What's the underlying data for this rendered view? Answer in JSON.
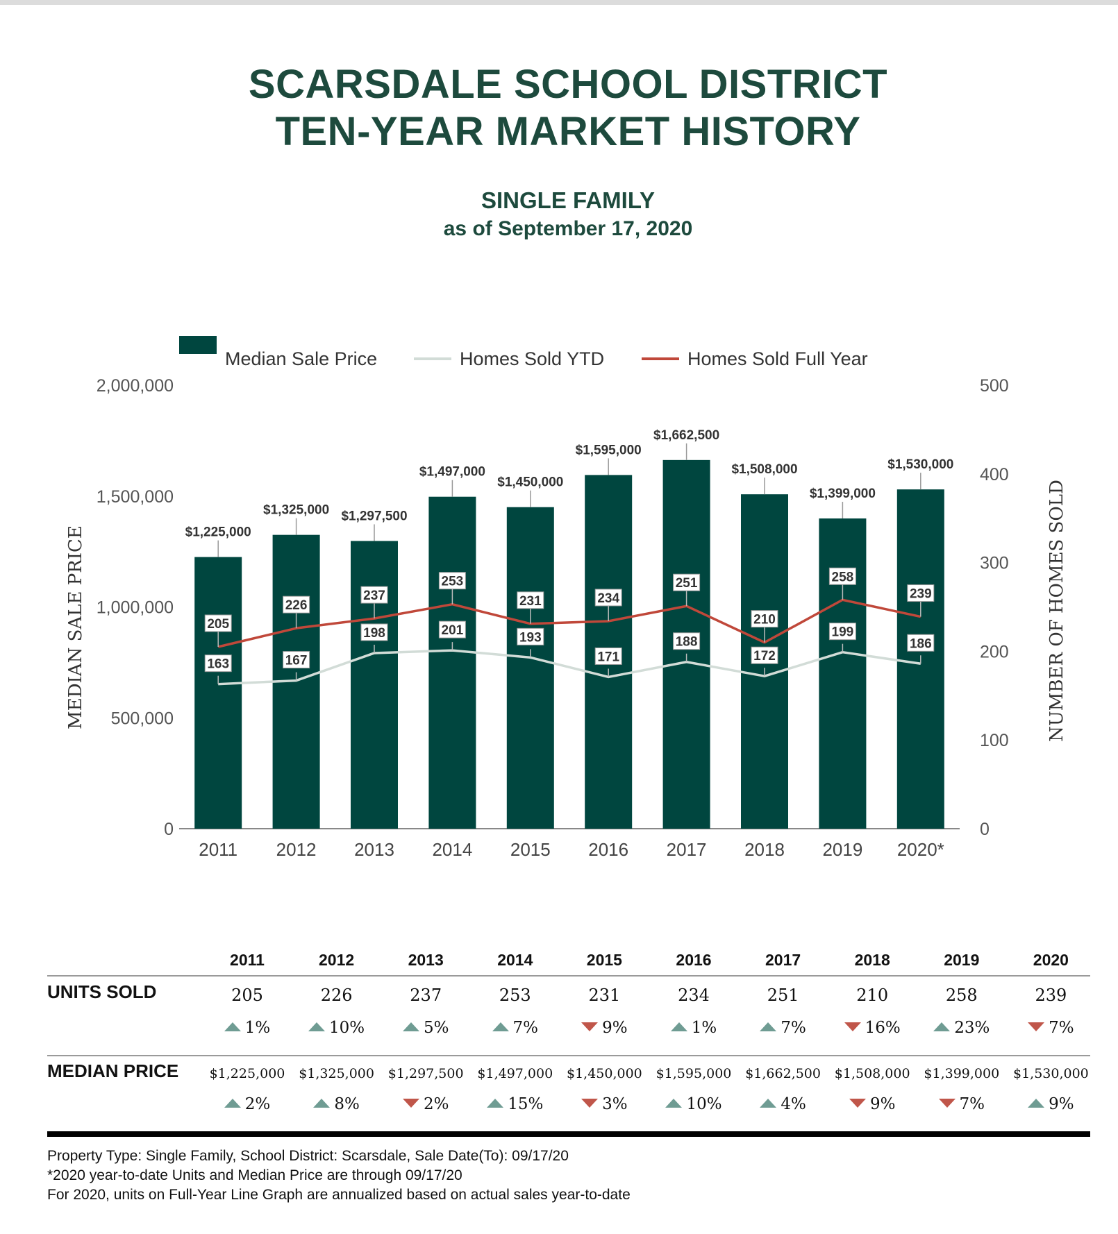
{
  "title_line1": "SCARSDALE SCHOOL DISTRICT",
  "title_line2": "TEN-YEAR MARKET HISTORY",
  "subtitle_line1": "SINGLE FAMILY",
  "subtitle_line2": "as of September 17, 2020",
  "colors": {
    "title": "#1d4a3d",
    "bar": "#00463f",
    "ytd_line": "#d2dcd7",
    "full_year_line": "#c0483a",
    "up": "#6f9c93",
    "down": "#c0564a"
  },
  "chart_data": {
    "type": "bar",
    "categories": [
      "2011",
      "2012",
      "2013",
      "2014",
      "2015",
      "2016",
      "2017",
      "2018",
      "2019",
      "2020*"
    ],
    "legend": [
      "Median Sale Price",
      "Homes Sold YTD",
      "Homes Sold Full Year"
    ],
    "legend_position": "top",
    "ylabel": "MEDIAN SALE PRICE",
    "y2label": "NUMBER OF HOMES SOLD",
    "ylim": [
      0,
      2000000
    ],
    "y2lim": [
      0,
      500
    ],
    "yticks": [
      "0",
      "500,000",
      "1,000,000",
      "1,500,000",
      "2,000,000"
    ],
    "y2ticks": [
      "0",
      "100",
      "200",
      "300",
      "400",
      "500"
    ],
    "series": [
      {
        "name": "Median Sale Price",
        "type": "bar",
        "axis": "left",
        "values": [
          1225000,
          1325000,
          1297500,
          1497000,
          1450000,
          1595000,
          1662500,
          1508000,
          1399000,
          1530000
        ],
        "labels": [
          "$1,225,000",
          "$1,325,000",
          "$1,297,500",
          "$1,497,000",
          "$1,450,000",
          "$1,595,000",
          "$1,662,500",
          "$1,508,000",
          "$1,399,000",
          "$1,530,000"
        ]
      },
      {
        "name": "Homes Sold YTD",
        "type": "line",
        "axis": "right",
        "values": [
          163,
          167,
          198,
          201,
          193,
          171,
          188,
          172,
          199,
          186
        ]
      },
      {
        "name": "Homes Sold Full Year",
        "type": "line",
        "axis": "right",
        "values": [
          205,
          226,
          237,
          253,
          231,
          234,
          251,
          210,
          258,
          239
        ]
      }
    ]
  },
  "table": {
    "years": [
      "2011",
      "2012",
      "2013",
      "2014",
      "2015",
      "2016",
      "2017",
      "2018",
      "2019",
      "2020"
    ],
    "units_label": "UNITS SOLD",
    "units": [
      "205",
      "226",
      "237",
      "253",
      "231",
      "234",
      "251",
      "210",
      "258",
      "239"
    ],
    "units_change": [
      {
        "dir": "up",
        "pct": "1%"
      },
      {
        "dir": "up",
        "pct": "10%"
      },
      {
        "dir": "up",
        "pct": "5%"
      },
      {
        "dir": "up",
        "pct": "7%"
      },
      {
        "dir": "down",
        "pct": "9%"
      },
      {
        "dir": "up",
        "pct": "1%"
      },
      {
        "dir": "up",
        "pct": "7%"
      },
      {
        "dir": "down",
        "pct": "16%"
      },
      {
        "dir": "up",
        "pct": "23%"
      },
      {
        "dir": "down",
        "pct": "7%"
      }
    ],
    "price_label": "MEDIAN PRICE",
    "prices": [
      "$1,225,000",
      "$1,325,000",
      "$1,297,500",
      "$1,497,000",
      "$1,450,000",
      "$1,595,000",
      "$1,662,500",
      "$1,508,000",
      "$1,399,000",
      "$1,530,000"
    ],
    "price_change": [
      {
        "dir": "up",
        "pct": "2%"
      },
      {
        "dir": "up",
        "pct": "8%"
      },
      {
        "dir": "down",
        "pct": "2%"
      },
      {
        "dir": "up",
        "pct": "15%"
      },
      {
        "dir": "down",
        "pct": "3%"
      },
      {
        "dir": "up",
        "pct": "10%"
      },
      {
        "dir": "up",
        "pct": "4%"
      },
      {
        "dir": "down",
        "pct": "9%"
      },
      {
        "dir": "down",
        "pct": "7%"
      },
      {
        "dir": "up",
        "pct": "9%"
      }
    ]
  },
  "notes": [
    "Property Type: Single Family, School District: Scarsdale, Sale Date(To): 09/17/20",
    "*2020 year-to-date Units and Median Price are through 09/17/20",
    "For 2020, units on Full-Year Line Graph are annualized based on actual sales year-to-date"
  ]
}
